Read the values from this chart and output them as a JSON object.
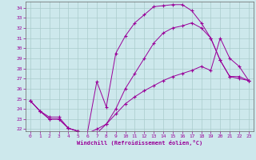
{
  "xlabel": "Windchill (Refroidissement éolien,°C)",
  "bg_color": "#cde8ec",
  "line_color": "#990099",
  "grid_color": "#aacccc",
  "xlim": [
    -0.5,
    23.5
  ],
  "ylim": [
    21.8,
    34.6
  ],
  "xticks": [
    0,
    1,
    2,
    3,
    4,
    5,
    6,
    7,
    8,
    9,
    10,
    11,
    12,
    13,
    14,
    15,
    16,
    17,
    18,
    19,
    20,
    21,
    22,
    23
  ],
  "yticks": [
    22,
    23,
    24,
    25,
    26,
    27,
    28,
    29,
    30,
    31,
    32,
    33,
    34
  ],
  "line1_x": [
    0,
    1,
    2,
    3,
    4,
    5,
    6,
    7,
    8,
    9,
    10,
    11,
    12,
    13,
    14,
    15,
    16,
    17,
    18,
    19,
    20,
    21,
    22,
    23
  ],
  "line1_y": [
    24.8,
    23.8,
    23.2,
    23.2,
    22.1,
    21.8,
    21.6,
    26.7,
    24.2,
    29.5,
    31.2,
    32.5,
    33.3,
    34.1,
    34.2,
    34.3,
    34.3,
    33.7,
    32.5,
    31.0,
    28.8,
    27.2,
    27.2,
    26.8
  ],
  "line2_x": [
    0,
    1,
    2,
    3,
    4,
    5,
    6,
    7,
    8,
    9,
    10,
    11,
    12,
    13,
    14,
    15,
    16,
    17,
    18,
    19,
    20,
    21,
    22,
    23
  ],
  "line2_y": [
    24.8,
    23.8,
    23.0,
    23.0,
    22.1,
    21.8,
    21.6,
    22.0,
    22.5,
    23.5,
    24.5,
    25.2,
    25.8,
    26.3,
    26.8,
    27.2,
    27.5,
    27.8,
    28.2,
    27.8,
    31.0,
    29.0,
    28.2,
    26.8
  ],
  "line3_x": [
    0,
    1,
    2,
    3,
    4,
    5,
    6,
    7,
    8,
    9,
    10,
    11,
    12,
    13,
    14,
    15,
    16,
    17,
    18,
    19,
    20,
    21,
    22,
    23
  ],
  "line3_y": [
    24.8,
    23.8,
    23.0,
    23.0,
    22.1,
    21.8,
    21.6,
    21.6,
    22.5,
    24.0,
    26.0,
    27.5,
    29.0,
    30.5,
    31.5,
    32.0,
    32.2,
    32.5,
    32.0,
    31.0,
    28.8,
    27.2,
    27.0,
    26.8
  ]
}
